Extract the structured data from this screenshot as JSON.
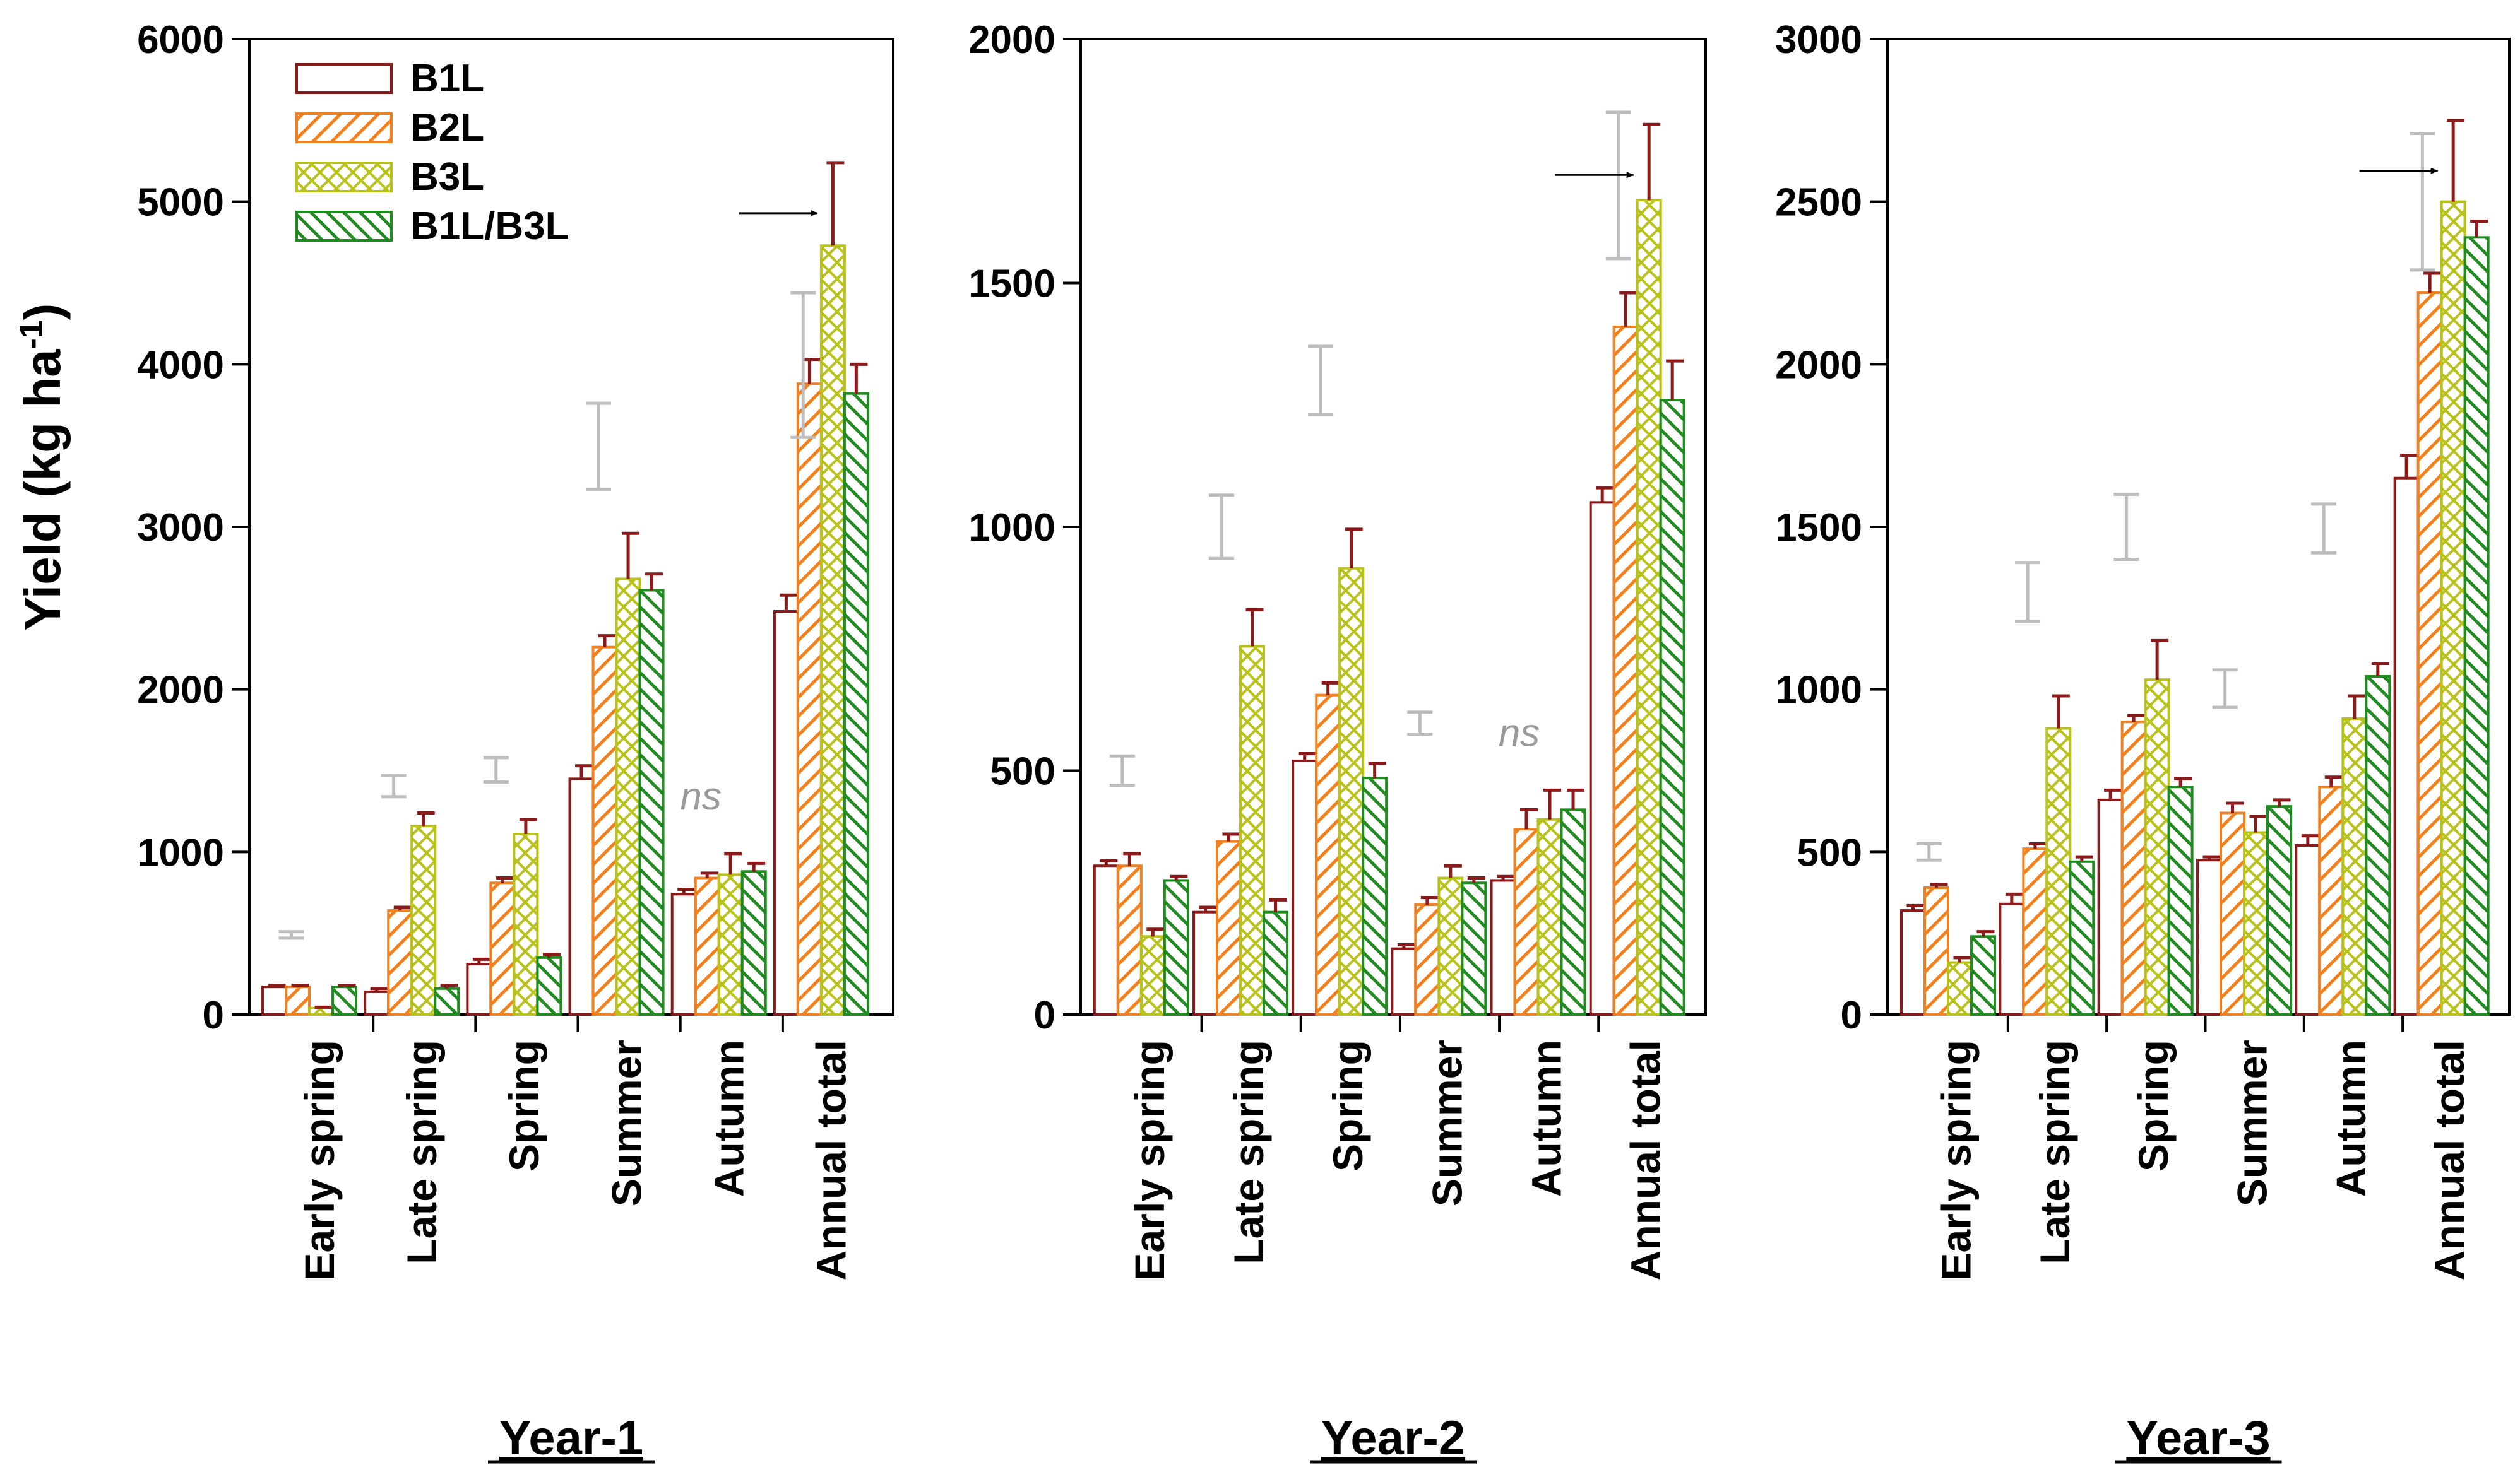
{
  "chart_data": [
    {
      "type": "bar",
      "title": "Year-1",
      "xlabel": "",
      "ylabel": "Yield (kg ha-1)",
      "ylim": [
        0,
        6000
      ],
      "yticks": [
        0,
        1000,
        2000,
        3000,
        4000,
        5000,
        6000
      ],
      "ytick_labels": [
        "0",
        "1000",
        "2000",
        "3000",
        "4000",
        "5000",
        "6000"
      ],
      "categories": [
        "Early spring",
        "Late spring",
        "Spring",
        "Summer",
        "Autumn",
        "Annual total"
      ],
      "series": [
        {
          "name": "B1L",
          "values": [
            170,
            140,
            310,
            1450,
            740,
            2480
          ],
          "errors": [
            10,
            20,
            30,
            80,
            30,
            100
          ]
        },
        {
          "name": "B2L",
          "values": [
            170,
            640,
            810,
            2260,
            840,
            3880
          ],
          "errors": [
            10,
            20,
            30,
            70,
            30,
            150
          ]
        },
        {
          "name": "B3L",
          "values": [
            40,
            1160,
            1110,
            2680,
            860,
            4730
          ],
          "errors": [
            5,
            80,
            90,
            280,
            130,
            510
          ]
        },
        {
          "name": "B1L/B3L",
          "values": [
            170,
            160,
            350,
            2610,
            880,
            3820
          ],
          "errors": [
            10,
            20,
            20,
            100,
            50,
            180
          ]
        }
      ],
      "lsd": [
        {
          "category": "Early spring",
          "low": 470,
          "high": 510
        },
        {
          "category": "Late spring",
          "low": 1340,
          "high": 1470
        },
        {
          "category": "Spring",
          "low": 1430,
          "high": 1580
        },
        {
          "category": "Summer",
          "low": 3230,
          "high": 3760
        },
        {
          "category": "Autumn",
          "low": null,
          "high": null,
          "label": "ns"
        },
        {
          "category": "Annual total",
          "low": 3550,
          "high": 4440
        }
      ],
      "arrow_target": "B3L Annual total",
      "legend": [
        "B1L",
        "B2L",
        "B3L",
        "B1L/B3L"
      ]
    },
    {
      "type": "bar",
      "title": "Year-2",
      "xlabel": "",
      "ylabel": "",
      "ylim": [
        0,
        2000
      ],
      "yticks": [
        0,
        500,
        1000,
        1500,
        2000
      ],
      "ytick_labels": [
        "0",
        "500",
        "1000",
        "1500",
        "2000"
      ],
      "categories": [
        "Early spring",
        "Late spring",
        "Spring",
        "Summer",
        "Autumn",
        "Annual total"
      ],
      "series": [
        {
          "name": "B1L",
          "values": [
            305,
            210,
            520,
            135,
            275,
            1050
          ],
          "errors": [
            10,
            10,
            15,
            8,
            8,
            30
          ]
        },
        {
          "name": "B2L",
          "values": [
            305,
            355,
            655,
            225,
            380,
            1410
          ],
          "errors": [
            25,
            15,
            25,
            15,
            40,
            70
          ]
        },
        {
          "name": "B3L",
          "values": [
            160,
            755,
            915,
            280,
            400,
            1670
          ],
          "errors": [
            15,
            75,
            80,
            25,
            60,
            155
          ]
        },
        {
          "name": "B1L/B3L",
          "values": [
            275,
            210,
            485,
            270,
            420,
            1260
          ],
          "errors": [
            8,
            25,
            30,
            10,
            40,
            80
          ]
        }
      ],
      "lsd": [
        {
          "category": "Early spring",
          "low": 470,
          "high": 530
        },
        {
          "category": "Late spring",
          "low": 935,
          "high": 1065
        },
        {
          "category": "Spring",
          "low": 1230,
          "high": 1370
        },
        {
          "category": "Summer",
          "low": 575,
          "high": 620
        },
        {
          "category": "Autumn",
          "low": null,
          "high": null,
          "label": "ns"
        },
        {
          "category": "Annual total",
          "low": 1550,
          "high": 1850
        }
      ],
      "arrow_target": "B3L Annual total"
    },
    {
      "type": "bar",
      "title": "Year-3",
      "xlabel": "",
      "ylabel": "",
      "ylim": [
        0,
        3000
      ],
      "yticks": [
        0,
        500,
        1000,
        1500,
        2000,
        2500,
        3000
      ],
      "ytick_labels": [
        "0",
        "500",
        "1000",
        "1500",
        "2000",
        "2500",
        "3000"
      ],
      "categories": [
        "Early spring",
        "Late spring",
        "Spring",
        "Summer",
        "Autumn",
        "Annual total"
      ],
      "series": [
        {
          "name": "B1L",
          "values": [
            320,
            340,
            660,
            475,
            520,
            1650
          ],
          "errors": [
            15,
            30,
            30,
            10,
            30,
            70
          ]
        },
        {
          "name": "B2L",
          "values": [
            390,
            510,
            900,
            620,
            700,
            2220
          ],
          "errors": [
            10,
            15,
            20,
            30,
            30,
            60
          ]
        },
        {
          "name": "B3L",
          "values": [
            160,
            880,
            1030,
            560,
            910,
            2500
          ],
          "errors": [
            15,
            100,
            120,
            50,
            70,
            250
          ]
        },
        {
          "name": "B1L/B3L",
          "values": [
            240,
            470,
            700,
            640,
            1040,
            2390
          ],
          "errors": [
            15,
            15,
            25,
            20,
            40,
            50
          ]
        }
      ],
      "lsd": [
        {
          "category": "Early spring",
          "low": 475,
          "high": 525
        },
        {
          "category": "Late spring",
          "low": 1210,
          "high": 1390
        },
        {
          "category": "Spring",
          "low": 1400,
          "high": 1600
        },
        {
          "category": "Summer",
          "low": 945,
          "high": 1060
        },
        {
          "category": "Autumn",
          "low": 1420,
          "high": 1570
        },
        {
          "category": "Annual total",
          "low": 2290,
          "high": 2710
        }
      ],
      "arrow_target": "B3L Annual total"
    }
  ],
  "legend": {
    "items": [
      {
        "label": "B1L",
        "color": "#8b1a1a",
        "pattern": "none"
      },
      {
        "label": "B2L",
        "color": "#f08020",
        "pattern": "diagonal"
      },
      {
        "label": "B3L",
        "color": "#b8c21a",
        "pattern": "cross-hatch"
      },
      {
        "label": "B1L/B3L",
        "color": "#1e8c1e",
        "pattern": "diagonal-back"
      }
    ]
  },
  "y_axis_title": {
    "main": "Yield (kg ha",
    "superscript": "-1",
    "close": ")"
  },
  "ns_label": "ns",
  "colors": {
    "b1l": "#8b1a1a",
    "b2l": "#f08020",
    "b3l": "#b8c21a",
    "b1lb3l": "#1e8c1e",
    "error_bar": "#8b1a1a",
    "lsd": "#bdbdbd",
    "axis": "#000000"
  }
}
